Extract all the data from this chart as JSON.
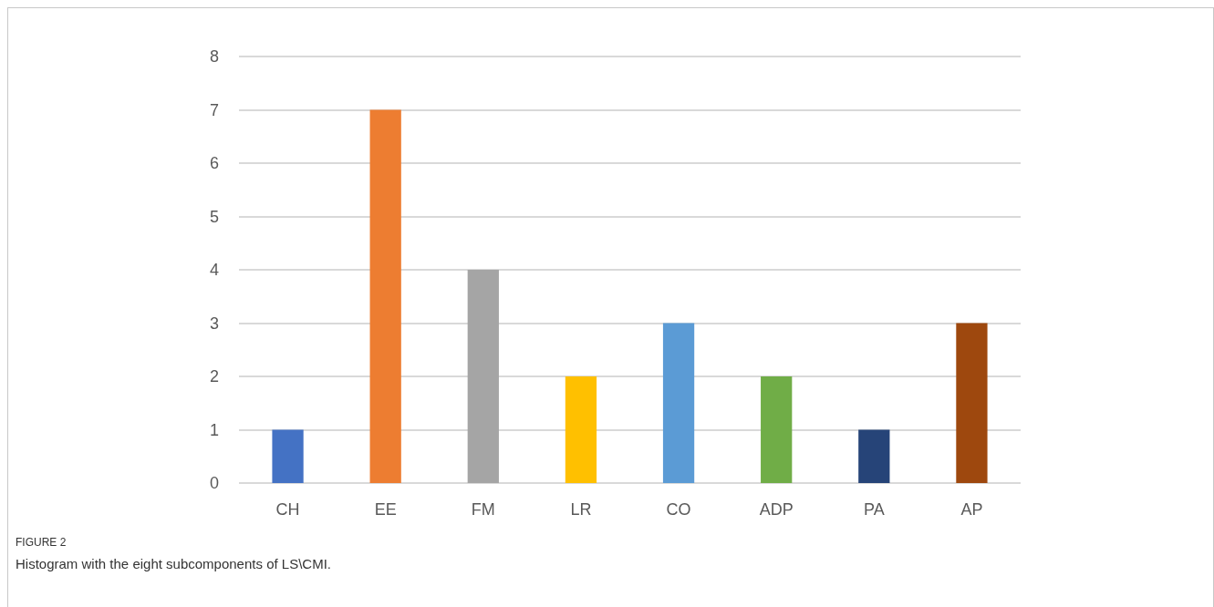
{
  "chart_data": {
    "type": "bar",
    "categories": [
      "CH",
      "EE",
      "FM",
      "LR",
      "CO",
      "ADP",
      "PA",
      "AP"
    ],
    "values": [
      1,
      7,
      4,
      2,
      3,
      2,
      1,
      3
    ],
    "colors": [
      "#4472c4",
      "#ed7d31",
      "#a5a5a5",
      "#ffc000",
      "#5b9bd5",
      "#70ad47",
      "#264478",
      "#9e480e"
    ],
    "ylim": [
      0,
      8
    ],
    "yticks": [
      0,
      1,
      2,
      3,
      4,
      5,
      6,
      7,
      8
    ],
    "grid": "y",
    "annotations": [
      "FIGURE 2",
      "Histogram with the eight subcomponents of LS\\CMI."
    ]
  }
}
